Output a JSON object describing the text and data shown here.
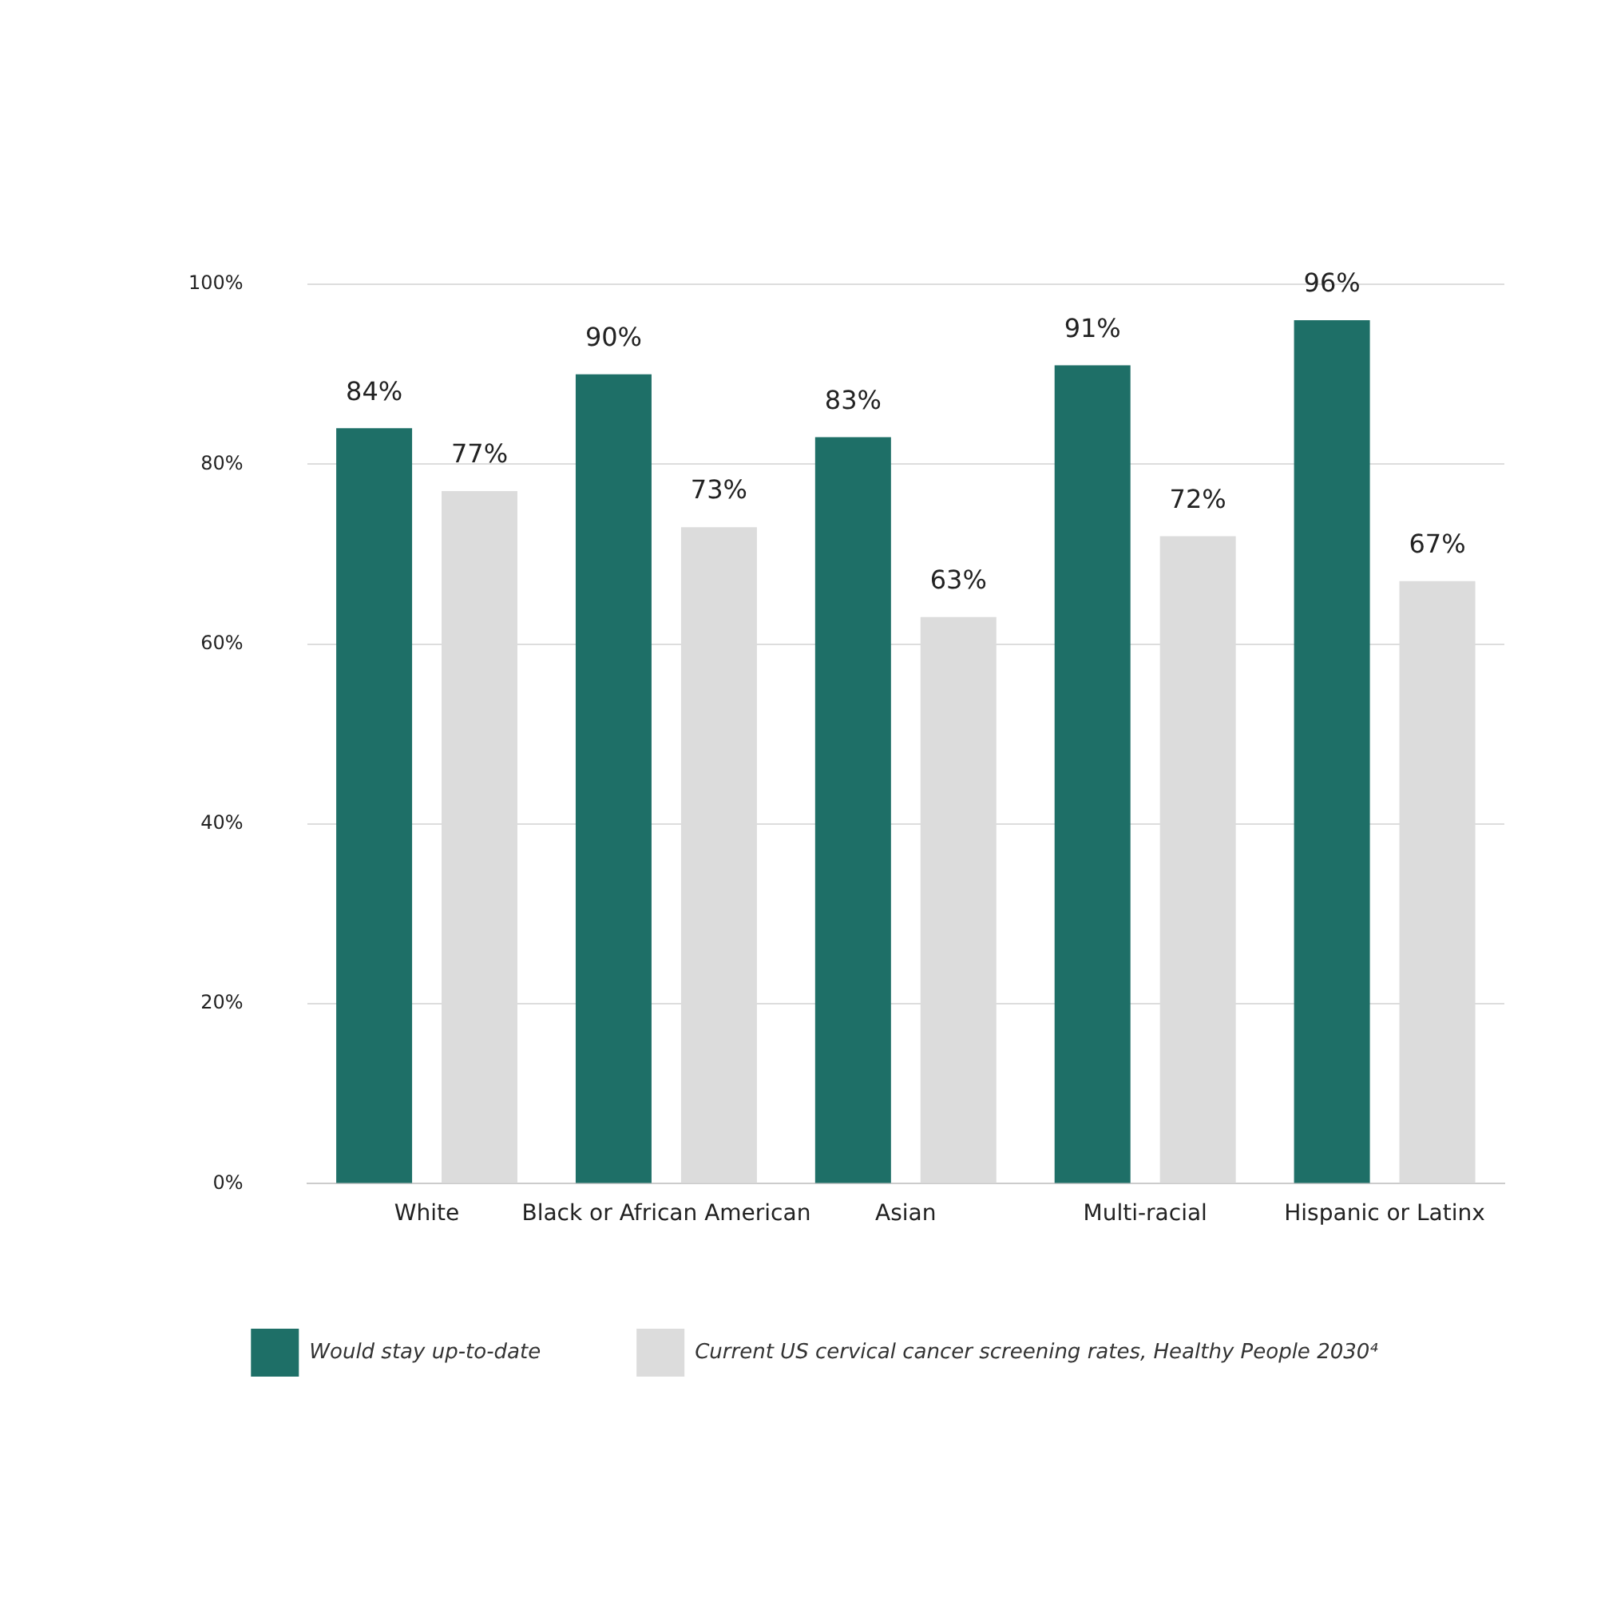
{
  "chart_data": {
    "type": "bar",
    "categories": [
      "White",
      "Black or African American",
      "Asian",
      "Multi-racial",
      "Hispanic or Latinx"
    ],
    "series": [
      {
        "name": "Would stay up-to-date",
        "color": "#1e6f67",
        "values": [
          84,
          90,
          83,
          91,
          96
        ],
        "value_labels": [
          "84%",
          "90%",
          "83%",
          "91%",
          "96%"
        ]
      },
      {
        "name": "Current US cervical cancer screening rates, Healthy People 2030⁴",
        "color": "#dcdcdc",
        "values": [
          77,
          73,
          63,
          72,
          67
        ],
        "value_labels": [
          "77%",
          "73%",
          "63%",
          "72%",
          "67%"
        ]
      }
    ],
    "ylim": [
      0,
      100
    ],
    "yticks": [
      {
        "value": 0,
        "label": "0%"
      },
      {
        "value": 20,
        "label": "20%"
      },
      {
        "value": 40,
        "label": "40%"
      },
      {
        "value": 60,
        "label": "60%"
      },
      {
        "value": 80,
        "label": "80%"
      },
      {
        "value": 100,
        "label": "100%"
      }
    ],
    "grid": "y",
    "legend": "bottom"
  }
}
